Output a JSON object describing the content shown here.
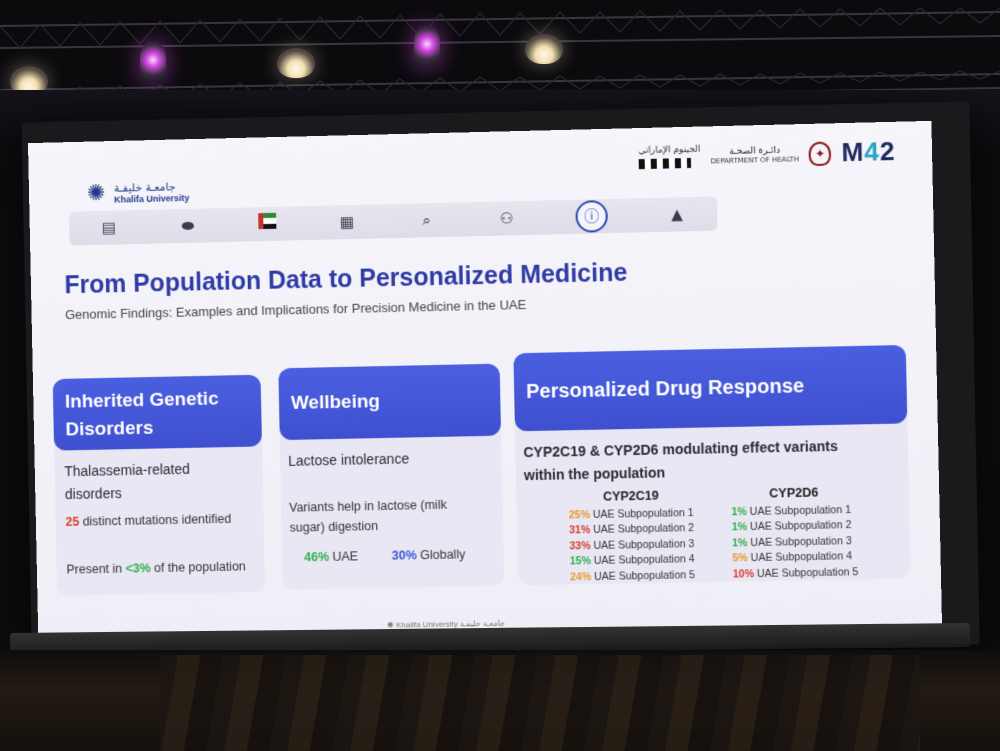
{
  "header": {
    "university_ar": "جامعـة خليفـة",
    "university_en": "Khalifa University",
    "partner_genome_ar": "الجينوم الإماراتي",
    "partner_doh_ar": "دائـرة الصحـة",
    "partner_doh_en": "DEPARTMENT OF HEALTH",
    "m42_logo": "M42"
  },
  "iconbar": {
    "icons": [
      "document-icon",
      "pills-icon",
      "uae-flag-icon",
      "chart-icon",
      "dna-search-icon",
      "people-icon",
      "info-icon",
      "speaker-icon"
    ],
    "active_index": 6
  },
  "slide": {
    "title": "From Population Data to Personalized Medicine",
    "subtitle": "Genomic Findings: Examples and Implications for Precision Medicine in the UAE"
  },
  "cards": {
    "inherited": {
      "heading_line1": "Inherited Genetic",
      "heading_line2": "Disorders",
      "condition_line1": "Thalassemia-related",
      "condition_line2": "disorders",
      "mutations_count": "25",
      "mutations_text": " distinct mutations identified",
      "present_prefix": "Present in ",
      "present_value": "<3%",
      "present_suffix": " of the population"
    },
    "wellbeing": {
      "heading": "Wellbeing",
      "condition": "Lactose intolerance",
      "variants_line1": "Variants help in lactose (milk",
      "variants_line2": "sugar) digestion",
      "uae_pct": "46%",
      "uae_label": " UAE",
      "global_pct": "30%",
      "global_label": " Globally"
    },
    "drug": {
      "heading": "Personalized Drug Response",
      "desc_line1": "CYP2C19 & CYP2D6 modulating effect variants",
      "desc_line2": "within the population",
      "cyp2c19": {
        "label": "CYP2C19",
        "rows": [
          {
            "pct": "25%",
            "label": " UAE Subpopulation 1",
            "color": "#e69a2a"
          },
          {
            "pct": "31%",
            "label": " UAE Subpopulation 2",
            "color": "#d83b2b"
          },
          {
            "pct": "33%",
            "label": " UAE Subpopulation 3",
            "color": "#d83b2b"
          },
          {
            "pct": "15%",
            "label": " UAE Subpopulation 4",
            "color": "#2fb04a"
          },
          {
            "pct": "24%",
            "label": " UAE Subpopulation 5",
            "color": "#e69a2a"
          }
        ]
      },
      "cyp2d6": {
        "label": "CYP2D6",
        "rows": [
          {
            "pct": "1%",
            "label": " UAE Subpopulation 1",
            "color": "#2fb04a"
          },
          {
            "pct": "1%",
            "label": " UAE Subpopulation 2",
            "color": "#2fb04a"
          },
          {
            "pct": "1%",
            "label": " UAE Subpopulation 3",
            "color": "#2fb04a"
          },
          {
            "pct": "5%",
            "label": " UAE Subpopulation 4",
            "color": "#e69a2a"
          },
          {
            "pct": "10%",
            "label": " UAE Subpopulation 5",
            "color": "#d83b2b"
          }
        ]
      }
    }
  },
  "footer": {
    "text_en": "Khalifa University",
    "text_ar": "جامعـة خليفـة"
  },
  "colors": {
    "title_blue": "#2e3aa6",
    "card_header_blue": "#4a5fe0",
    "red": "#d83b2b",
    "green": "#2fb04a",
    "orange": "#e69a2a",
    "blue": "#3d55d6"
  }
}
